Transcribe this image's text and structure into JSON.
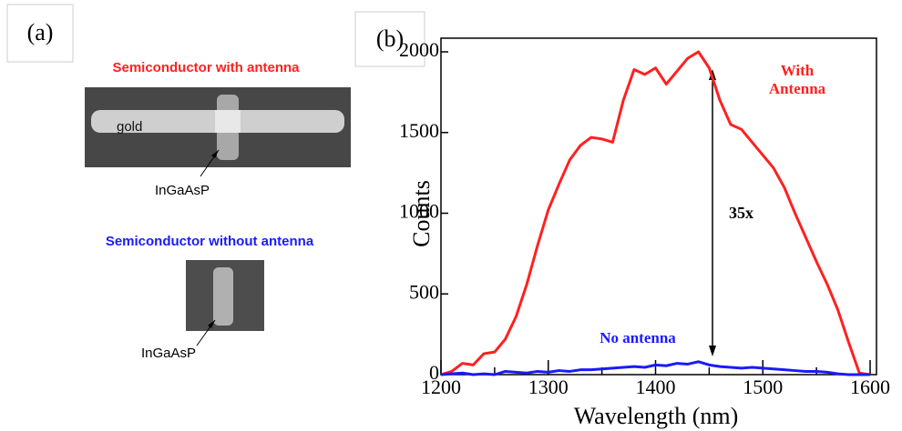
{
  "panel_a": {
    "label": "(a)",
    "image_1": {
      "caption": "Semiconductor with antenna",
      "metal_label": "gold",
      "material_label": "InGaAsP"
    },
    "image_2": {
      "caption": "Semiconductor without antenna",
      "material_label": "InGaAsP"
    }
  },
  "panel_b_label": "(b)",
  "chart_data": {
    "type": "line",
    "x_label": "Wavelength (nm)",
    "y_label": "Counts",
    "x": [
      1200,
      1210,
      1220,
      1230,
      1240,
      1250,
      1260,
      1270,
      1280,
      1290,
      1300,
      1310,
      1320,
      1330,
      1340,
      1350,
      1360,
      1370,
      1380,
      1390,
      1400,
      1410,
      1420,
      1430,
      1440,
      1450,
      1460,
      1470,
      1480,
      1490,
      1500,
      1510,
      1520,
      1530,
      1540,
      1550,
      1560,
      1570,
      1580,
      1590,
      1600
    ],
    "series": [
      {
        "name": "With Antenna",
        "color": "#ff2020",
        "values": [
          0,
          20,
          70,
          60,
          130,
          140,
          220,
          360,
          560,
          800,
          1020,
          1180,
          1330,
          1420,
          1470,
          1460,
          1440,
          1700,
          1890,
          1860,
          1900,
          1800,
          1880,
          1960,
          2000,
          1900,
          1700,
          1550,
          1520,
          1440,
          1360,
          1280,
          1160,
          1000,
          850,
          700,
          560,
          400,
          200,
          10,
          0
        ]
      },
      {
        "name": "No antenna",
        "color": "#1a1aff",
        "values": [
          0,
          5,
          10,
          0,
          5,
          0,
          20,
          15,
          10,
          20,
          15,
          25,
          20,
          30,
          30,
          35,
          40,
          45,
          50,
          45,
          60,
          55,
          70,
          65,
          80,
          60,
          50,
          45,
          40,
          45,
          40,
          35,
          30,
          25,
          20,
          20,
          15,
          5,
          0,
          0,
          0
        ]
      }
    ],
    "xlim": [
      1200,
      1600
    ],
    "ylim": [
      0,
      2000
    ],
    "xticks": [
      1200,
      1300,
      1400,
      1500,
      1600
    ],
    "xminorticks": [
      1250,
      1350,
      1450,
      1550
    ],
    "yticks": [
      0,
      500,
      1000,
      1500,
      2000
    ],
    "annotations": [
      {
        "text": "35x"
      }
    ]
  }
}
